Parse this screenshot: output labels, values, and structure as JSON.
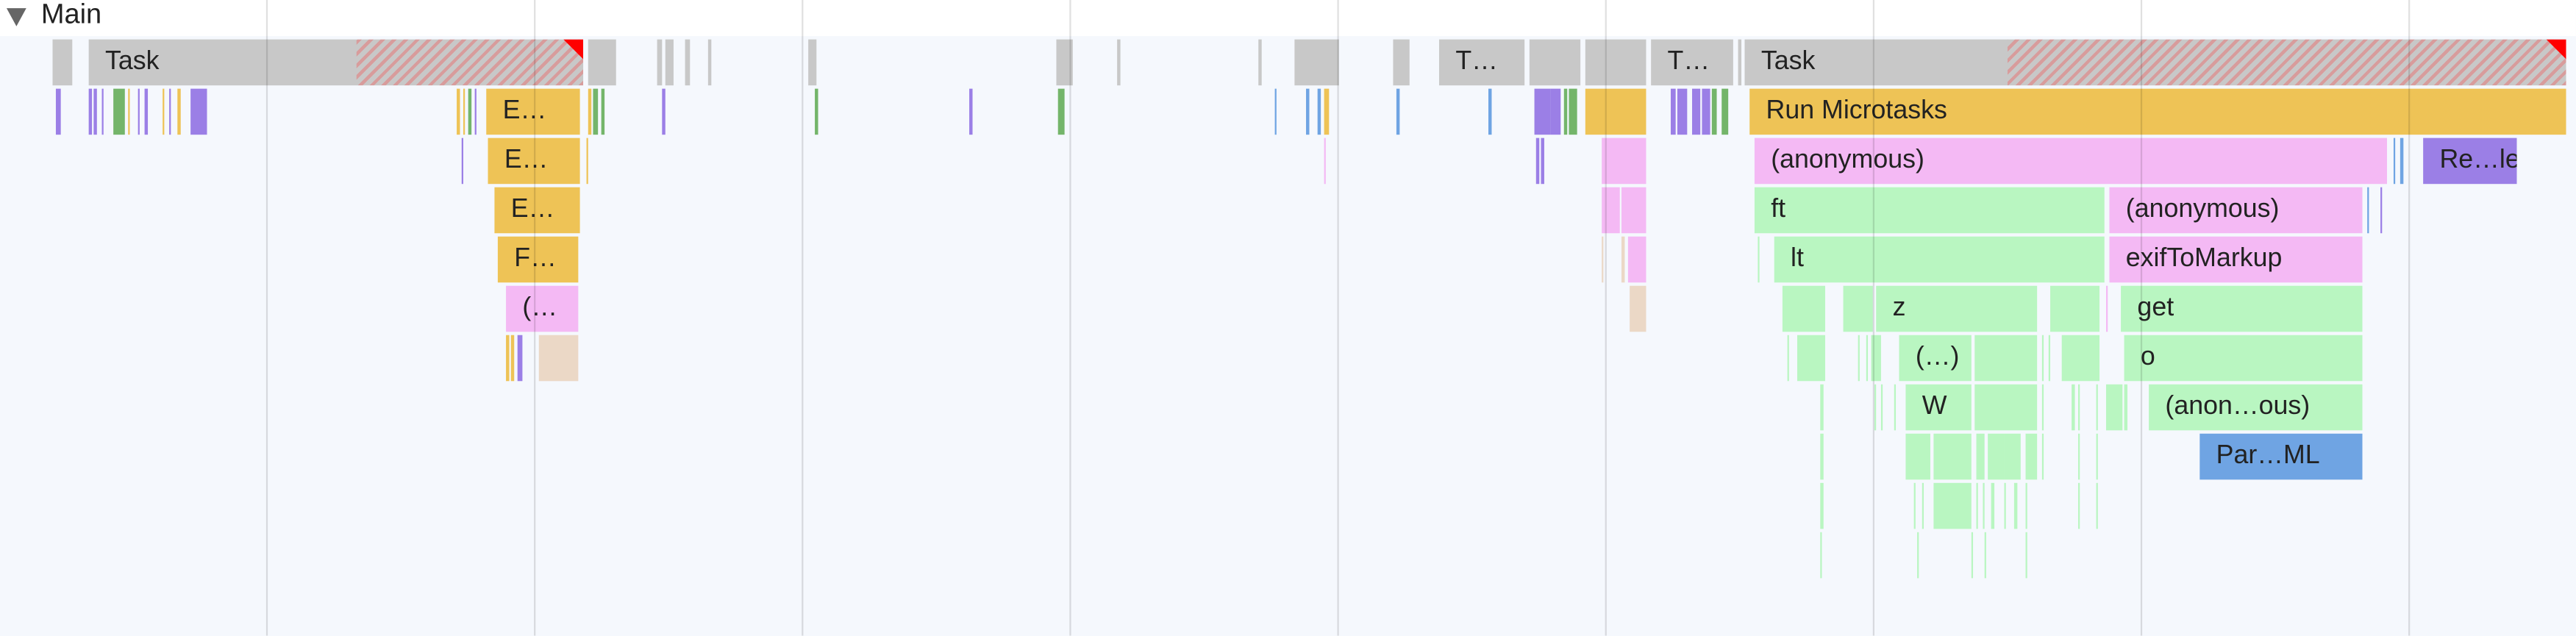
{
  "track": {
    "title": "Main",
    "expanded": true
  },
  "colors": {
    "task": "#c8c8c8",
    "scripting": "#eec356",
    "function": "#f4b9f4",
    "js": "#b9f6c1",
    "rendering": "#9b7fe6",
    "parse": "#6fa4e3",
    "gc": "#ebd8c6",
    "paint": "#74b56a",
    "long_task_warning": "#ff0000"
  },
  "labels": {
    "task1": "Task",
    "e1": "E…",
    "e2": "E…",
    "e3": "E…",
    "f1": "F…",
    "p1": "(…",
    "t2": "T…",
    "t3": "T…",
    "task4": "Task",
    "run_microtasks": "Run Microtasks",
    "anon1": "(anonymous)",
    "rele": "Re…le",
    "ft": "ft",
    "anon2": "(anonymous)",
    "lt": "lt",
    "exif": "exifToMarkup",
    "z": "z",
    "get": "get",
    "dots": "(…)",
    "o": "o",
    "W": "W",
    "anonous": "(anon…ous)",
    "parml": "Par…ML"
  }
}
